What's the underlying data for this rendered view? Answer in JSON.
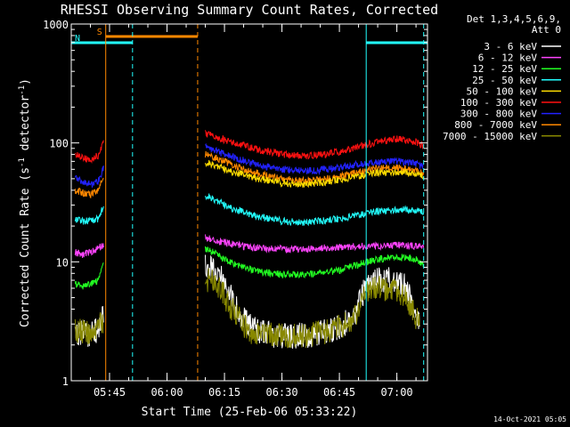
{
  "chart_data": {
    "type": "line",
    "title": "RHESSI Observing Summary Count Rates, Corrected",
    "xlabel": "Start Time (25-Feb-06 05:33:22)",
    "ylabel": "Corrected Count Rate (s⁻¹ detector⁻¹)",
    "ylabel_parts": {
      "pre": "Corrected Count Rate (s",
      "mid": " detector",
      "post": ")",
      "sup": "-1"
    },
    "yscale": "log",
    "xlim": [
      "05:35:00",
      "07:08:00"
    ],
    "ylim": [
      1,
      1000
    ],
    "xticks": [
      "05:45",
      "06:00",
      "06:15",
      "06:30",
      "06:45",
      "07:00"
    ],
    "yticks": [
      {
        "value": 1,
        "label": "1"
      },
      {
        "value": 10,
        "label": "10"
      },
      {
        "value": 100,
        "label": "100"
      },
      {
        "value": 1000,
        "label": "1000"
      }
    ],
    "legend": {
      "position": "top-right",
      "header": [
        "Det 1,3,4,5,6,9,",
        "Att 0"
      ]
    },
    "series": [
      {
        "name": "3 - 6 keV",
        "color": "#ffffff",
        "segments": [
          {
            "x": [
              "05:36",
              "05:38",
              "05:40",
              "05:42",
              "05:43:30"
            ],
            "y": [
              2.5,
              2.6,
              2.4,
              2.7,
              3.6
            ]
          },
          {
            "x": [
              "06:10",
              "06:12",
              "06:14",
              "06:16",
              "06:18",
              "06:20",
              "06:22",
              "06:25",
              "06:30",
              "06:35",
              "06:40",
              "06:45",
              "06:49",
              "06:52",
              "06:55",
              "06:58",
              "07:00",
              "07:02",
              "07:04",
              "07:06"
            ],
            "y": [
              9,
              8.5,
              7.5,
              5.5,
              4.2,
              3.3,
              2.8,
              2.5,
              2.4,
              2.4,
              2.5,
              2.8,
              3.5,
              6.5,
              7,
              7,
              6.8,
              6.2,
              4.5,
              3.2
            ]
          }
        ]
      },
      {
        "name": "6 - 12 keV",
        "color": "#ff44ff",
        "segments": [
          {
            "x": [
              "05:36",
              "05:38",
              "05:40",
              "05:42",
              "05:43:30"
            ],
            "y": [
              12,
              11.5,
              12,
              13,
              14
            ]
          },
          {
            "x": [
              "06:10",
              "06:12",
              "06:15",
              "06:20",
              "06:25",
              "06:30",
              "06:35",
              "06:40",
              "06:45",
              "06:50",
              "06:55",
              "07:00",
              "07:05",
              "07:07"
            ],
            "y": [
              16,
              15.5,
              14.5,
              13.5,
              13,
              12.8,
              12.8,
              13,
              13.3,
              13.5,
              13.6,
              13.8,
              13.5,
              13.2
            ]
          }
        ]
      },
      {
        "name": "12 - 25 keV",
        "color": "#22ff22",
        "segments": [
          {
            "x": [
              "05:36",
              "05:38",
              "05:40",
              "05:42",
              "05:43:30"
            ],
            "y": [
              6.5,
              6.2,
              6.5,
              7,
              9.5
            ]
          },
          {
            "x": [
              "06:10",
              "06:12",
              "06:15",
              "06:20",
              "06:25",
              "06:30",
              "06:35",
              "06:40",
              "06:45",
              "06:50",
              "06:55",
              "07:00",
              "07:05",
              "07:07"
            ],
            "y": [
              13,
              12,
              10.5,
              9,
              8.2,
              7.8,
              7.8,
              8,
              8.5,
              9.5,
              10.5,
              11,
              10.5,
              9.5
            ]
          }
        ]
      },
      {
        "name": "25 - 50 keV",
        "color": "#22ffff",
        "segments": [
          {
            "x": [
              "05:36",
              "05:38",
              "05:40",
              "05:42",
              "05:43:30"
            ],
            "y": [
              23,
              22,
              22,
              23,
              30
            ]
          },
          {
            "x": [
              "06:10",
              "06:12",
              "06:15",
              "06:20",
              "06:25",
              "06:30",
              "06:35",
              "06:40",
              "06:45",
              "06:50",
              "06:55",
              "07:00",
              "07:05",
              "07:07"
            ],
            "y": [
              36,
              34,
              30,
              26,
              23.5,
              22,
              21.5,
              22,
              23,
              25,
              26.5,
              27.5,
              27,
              26
            ]
          }
        ]
      },
      {
        "name": "50 - 100 keV",
        "color": "#ffdd00",
        "segments": [
          {
            "x": [
              "06:10",
              "06:12",
              "06:15",
              "06:20",
              "06:25",
              "06:30",
              "06:35",
              "06:40",
              "06:45",
              "06:50",
              "06:55",
              "07:00",
              "07:05",
              "07:07"
            ],
            "y": [
              68,
              66,
              60,
              54,
              49,
              46,
              45,
              46,
              49,
              53,
              56,
              57,
              55,
              52
            ]
          }
        ]
      },
      {
        "name": "100 - 300 keV",
        "color": "#ff1111",
        "segments": [
          {
            "x": [
              "05:36",
              "05:38",
              "05:40",
              "05:42",
              "05:43:30"
            ],
            "y": [
              80,
              76,
              73,
              78,
              105
            ]
          },
          {
            "x": [
              "06:10",
              "06:12",
              "06:15",
              "06:20",
              "06:25",
              "06:30",
              "06:35",
              "06:40",
              "06:45",
              "06:50",
              "06:55",
              "07:00",
              "07:05",
              "07:07"
            ],
            "y": [
              120,
              116,
              106,
              95,
              86,
              80,
              78,
              79,
              84,
              93,
              102,
              108,
              102,
              94
            ]
          }
        ]
      },
      {
        "name": "300 - 800 keV",
        "color": "#2222ff",
        "segments": [
          {
            "x": [
              "05:36",
              "05:38",
              "05:40",
              "05:42",
              "05:43:30"
            ],
            "y": [
              50,
              47,
              45,
              47,
              62
            ]
          },
          {
            "x": [
              "06:10",
              "06:12",
              "06:15",
              "06:20",
              "06:25",
              "06:30",
              "06:35",
              "06:40",
              "06:45",
              "06:50",
              "06:55",
              "07:00",
              "07:05",
              "07:07"
            ],
            "y": [
              92,
              88,
              80,
              71,
              64,
              60,
              58,
              59,
              62,
              66,
              69,
              70,
              67,
              63
            ]
          }
        ]
      },
      {
        "name": "800 - 7000 keV",
        "color": "#ff8800",
        "segments": [
          {
            "x": [
              "05:36",
              "05:38",
              "05:40",
              "05:42",
              "05:43:30"
            ],
            "y": [
              40,
              38,
              37,
              39,
              55
            ]
          },
          {
            "x": [
              "06:10",
              "06:12",
              "06:15",
              "06:20",
              "06:25",
              "06:30",
              "06:35",
              "06:40",
              "06:45",
              "06:50",
              "06:55",
              "07:00",
              "07:05",
              "07:07"
            ],
            "y": [
              80,
              76,
              70,
              60,
              54,
              50,
              48,
              49,
              52,
              57,
              61,
              62,
              59,
              55
            ]
          }
        ]
      },
      {
        "name": "7000 - 15000 keV",
        "color": "#888800",
        "segments": [
          {
            "x": [
              "05:36",
              "05:38",
              "05:40",
              "05:42",
              "05:43:30"
            ],
            "y": [
              2.7,
              2.6,
              2.5,
              2.8,
              3.2
            ]
          },
          {
            "x": [
              "06:10",
              "06:12",
              "06:14",
              "06:16",
              "06:18",
              "06:20",
              "06:22",
              "06:25",
              "06:30",
              "06:35",
              "06:40",
              "06:45",
              "06:49",
              "06:52",
              "06:55",
              "06:58",
              "07:00",
              "07:02",
              "07:04",
              "07:06"
            ],
            "y": [
              7,
              7.2,
              6,
              4.5,
              3.5,
              3,
              2.6,
              2.4,
              2.4,
              2.4,
              2.5,
              2.8,
              3.4,
              5.5,
              6,
              6,
              5.8,
              5.3,
              4,
              3
            ]
          }
        ]
      }
    ],
    "flags": [
      {
        "label": "S",
        "color": "#ff8800",
        "start": "05:44",
        "end": "06:08"
      },
      {
        "label": "N",
        "color": "#22ffff",
        "start": "05:35",
        "end": "05:51"
      },
      {
        "label": "",
        "color": "#22ffff",
        "start": "06:52",
        "end": "07:08"
      }
    ],
    "markers": [
      {
        "time": "05:44",
        "color": "#ff8800",
        "style": "solid"
      },
      {
        "time": "05:51",
        "color": "#22ffff",
        "style": "dashed"
      },
      {
        "time": "06:08",
        "color": "#ff8800",
        "style": "dashed"
      },
      {
        "time": "06:52",
        "color": "#22ffff",
        "style": "solid"
      },
      {
        "time": "07:07",
        "color": "#22ffff",
        "style": "dashed"
      }
    ]
  },
  "footer": {
    "timestamp": "14-Oct-2021 05:05"
  }
}
